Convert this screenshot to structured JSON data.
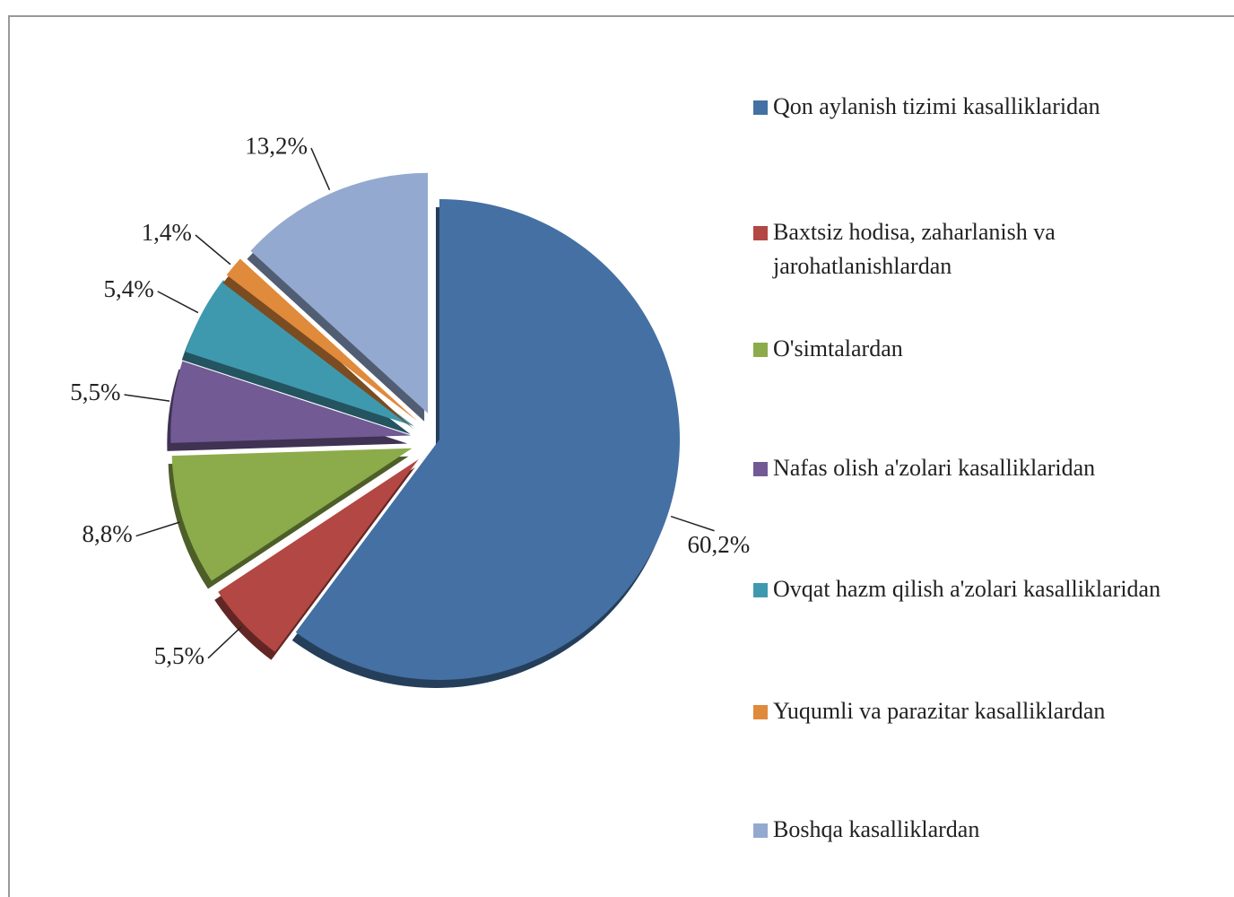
{
  "chart_data": {
    "type": "pie",
    "categories": [
      "Qon aylanish tizimi kasalliklaridan",
      "Baxtsiz hodisa, zaharlanish va jarohatlanishlardan",
      "O'simtalardan",
      "Nafas olish a'zolari kasalliklaridan",
      "Ovqat hazm qilish a'zolari kasalliklaridan",
      "Yuqumli va parazitar kasalliklardan",
      "Boshqa kasalliklardan"
    ],
    "values": [
      60.2,
      5.5,
      8.8,
      5.5,
      5.4,
      1.4,
      13.2
    ],
    "value_labels": [
      "60,2%",
      "5,5%",
      "8,8%",
      "5,5%",
      "5,4%",
      "1,4%",
      "13,2%"
    ],
    "colors": [
      "#4470a3",
      "#b24743",
      "#8cab4b",
      "#725a95",
      "#3f99ae",
      "#e08a3c",
      "#94a9cf"
    ],
    "legend": "right"
  }
}
